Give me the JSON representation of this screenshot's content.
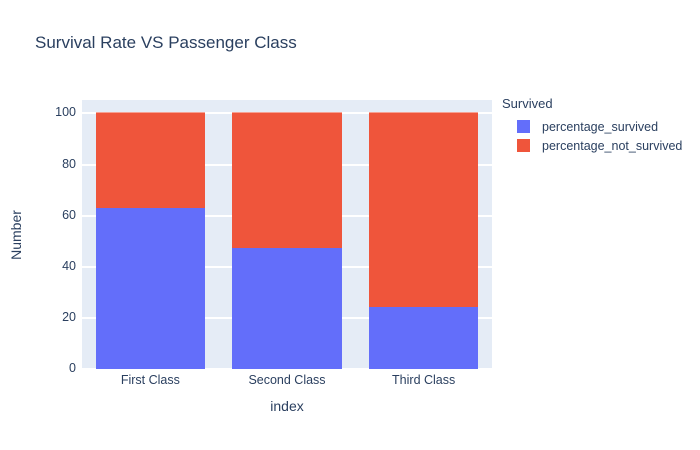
{
  "title": "Survival Rate VS Passenger Class",
  "colors": {
    "background": "#ffffff",
    "plot_background": "#e5ecf6",
    "gridline": "#ffffff",
    "font": "#2a3f5f",
    "series_blue": "#636efa",
    "series_red": "#ef553b"
  },
  "legend": {
    "title": "Survived"
  },
  "chart_data": {
    "type": "bar",
    "stacked": true,
    "title": "Survival Rate VS Passenger Class",
    "xlabel": "index",
    "ylabel": "Number",
    "categories": [
      "First Class",
      "Second Class",
      "Third Class"
    ],
    "series": [
      {
        "name": "percentage_survived",
        "color": "#636efa",
        "values": [
          62.96,
          47.28,
          24.24
        ]
      },
      {
        "name": "percentage_not_survived",
        "color": "#ef553b",
        "values": [
          37.04,
          52.72,
          75.76
        ]
      }
    ],
    "ylim": [
      0,
      105.26
    ],
    "y_ticks": [
      0,
      20,
      40,
      60,
      80,
      100
    ],
    "grid": true,
    "legend_title": "Survived",
    "legend_position": "right",
    "bar_fraction": 0.8
  }
}
